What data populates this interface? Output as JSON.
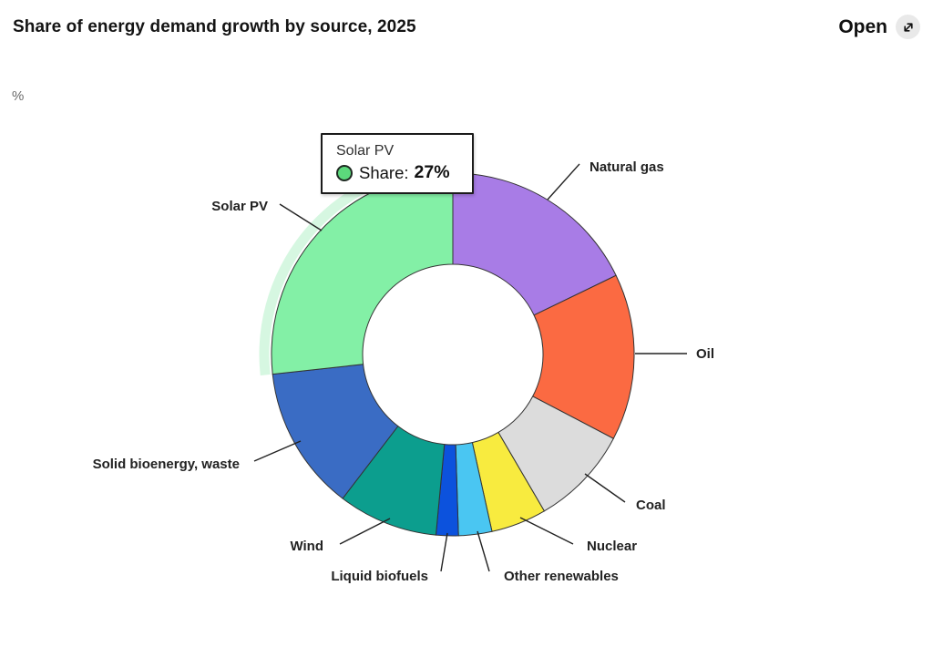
{
  "header": {
    "title": "Share of energy demand growth by source, 2025",
    "open_label": "Open",
    "open_icon": "expand-diagonal-arrow-icon"
  },
  "axis": {
    "unit_label": "%"
  },
  "tooltip": {
    "series": "Solar PV",
    "metric_label": "Share:",
    "value": "27%",
    "marker_color": "#5cd97c",
    "marker_border_color": "#1f2a22"
  },
  "chart_data": {
    "type": "pie",
    "subtype": "donut",
    "title": "Share of energy demand growth by source, 2025",
    "unit": "%",
    "direction": "clockwise",
    "start_angle_deg": 0,
    "hovered_slice": "Solar PV",
    "slice_border_color": "#333333",
    "slices": [
      {
        "label": "Natural gas",
        "value": 18,
        "color": "#a87ce6"
      },
      {
        "label": "Oil",
        "value": 15,
        "color": "#fb6a42"
      },
      {
        "label": "Coal",
        "value": 9,
        "color": "#dcdcdc"
      },
      {
        "label": "Nuclear",
        "value": 5,
        "color": "#f8eb3f"
      },
      {
        "label": "Other renewables",
        "value": 3,
        "color": "#4ac6f2"
      },
      {
        "label": "Liquid biofuels",
        "value": 2,
        "color": "#0c52dd"
      },
      {
        "label": "Wind",
        "value": 9,
        "color": "#0c9e8e"
      },
      {
        "label": "Solid bioenergy, waste",
        "value": 13,
        "color": "#3a6cc4"
      },
      {
        "label": "Solar PV",
        "value": 27,
        "color": "#83f0a6",
        "highlighted": true,
        "highlight_color": "#d6f7e1"
      }
    ]
  }
}
